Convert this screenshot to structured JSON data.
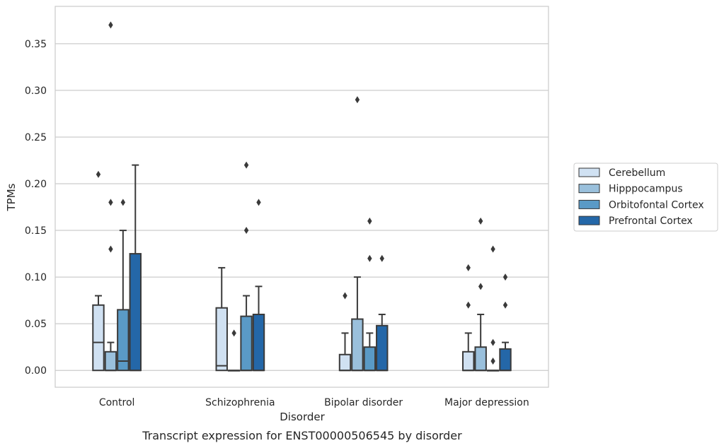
{
  "chart_data": {
    "type": "box",
    "xlabel": "Disorder",
    "ylabel": "TPMs",
    "caption": "Transcript expression for ENST00000506545 by disorder",
    "ylim": [
      -0.018,
      0.39
    ],
    "yticks": [
      0.0,
      0.05,
      0.1,
      0.15,
      0.2,
      0.25,
      0.3,
      0.35
    ],
    "ytick_labels": [
      "0.00",
      "0.05",
      "0.10",
      "0.15",
      "0.20",
      "0.25",
      "0.30",
      "0.35"
    ],
    "grid": "horizontal",
    "legend_position": "right",
    "categories": [
      "Control",
      "Schizophrenia",
      "Bipolar disorder",
      "Major depression"
    ],
    "series": [
      {
        "name": "Cerebellum",
        "color": "#d0e1f2",
        "boxes": [
          {
            "q1": 0.0,
            "median": 0.03,
            "q3": 0.07,
            "whisker_low": 0.0,
            "whisker_high": 0.08,
            "outliers": [
              0.21
            ]
          },
          {
            "q1": 0.0,
            "median": 0.005,
            "q3": 0.067,
            "whisker_low": 0.0,
            "whisker_high": 0.11,
            "outliers": []
          },
          {
            "q1": 0.0,
            "median": 0.0,
            "q3": 0.017,
            "whisker_low": 0.0,
            "whisker_high": 0.04,
            "outliers": [
              0.08
            ]
          },
          {
            "q1": 0.0,
            "median": 0.0,
            "q3": 0.02,
            "whisker_low": 0.0,
            "whisker_high": 0.04,
            "outliers": [
              0.07,
              0.11
            ]
          }
        ]
      },
      {
        "name": "Hipppocampus",
        "color": "#9ac0dc",
        "boxes": [
          {
            "q1": 0.0,
            "median": 0.0,
            "q3": 0.02,
            "whisker_low": 0.0,
            "whisker_high": 0.03,
            "outliers": [
              0.13,
              0.18,
              0.37
            ]
          },
          {
            "q1": 0.0,
            "median": 0.0,
            "q3": 0.0,
            "whisker_low": 0.0,
            "whisker_high": 0.0,
            "outliers": [
              0.04
            ]
          },
          {
            "q1": 0.0,
            "median": 0.0,
            "q3": 0.055,
            "whisker_low": 0.0,
            "whisker_high": 0.1,
            "outliers": [
              0.29
            ]
          },
          {
            "q1": 0.0,
            "median": 0.0,
            "q3": 0.025,
            "whisker_low": 0.0,
            "whisker_high": 0.06,
            "outliers": [
              0.09,
              0.16
            ]
          }
        ]
      },
      {
        "name": "Orbitofontal Cortex",
        "color": "#5a9ac6",
        "boxes": [
          {
            "q1": 0.0,
            "median": 0.01,
            "q3": 0.065,
            "whisker_low": 0.0,
            "whisker_high": 0.15,
            "outliers": [
              0.18
            ]
          },
          {
            "q1": 0.0,
            "median": 0.0,
            "q3": 0.058,
            "whisker_low": 0.0,
            "whisker_high": 0.08,
            "outliers": [
              0.15,
              0.22
            ]
          },
          {
            "q1": 0.0,
            "median": 0.0,
            "q3": 0.025,
            "whisker_low": 0.0,
            "whisker_high": 0.04,
            "outliers": [
              0.12,
              0.16
            ]
          },
          {
            "q1": 0.0,
            "median": 0.0,
            "q3": 0.0,
            "whisker_low": 0.0,
            "whisker_high": 0.0,
            "outliers": [
              0.01,
              0.03,
              0.13
            ]
          }
        ]
      },
      {
        "name": "Prefrontal Cortex",
        "color": "#2467a8",
        "boxes": [
          {
            "q1": 0.0,
            "median": 0.0,
            "q3": 0.125,
            "whisker_low": 0.0,
            "whisker_high": 0.22,
            "outliers": []
          },
          {
            "q1": 0.0,
            "median": 0.0,
            "q3": 0.06,
            "whisker_low": 0.0,
            "whisker_high": 0.09,
            "outliers": [
              0.18
            ]
          },
          {
            "q1": 0.0,
            "median": 0.0,
            "q3": 0.048,
            "whisker_low": 0.0,
            "whisker_high": 0.06,
            "outliers": [
              0.12
            ]
          },
          {
            "q1": 0.0,
            "median": 0.0,
            "q3": 0.023,
            "whisker_low": 0.0,
            "whisker_high": 0.03,
            "outliers": [
              0.07,
              0.1
            ]
          }
        ]
      }
    ]
  }
}
